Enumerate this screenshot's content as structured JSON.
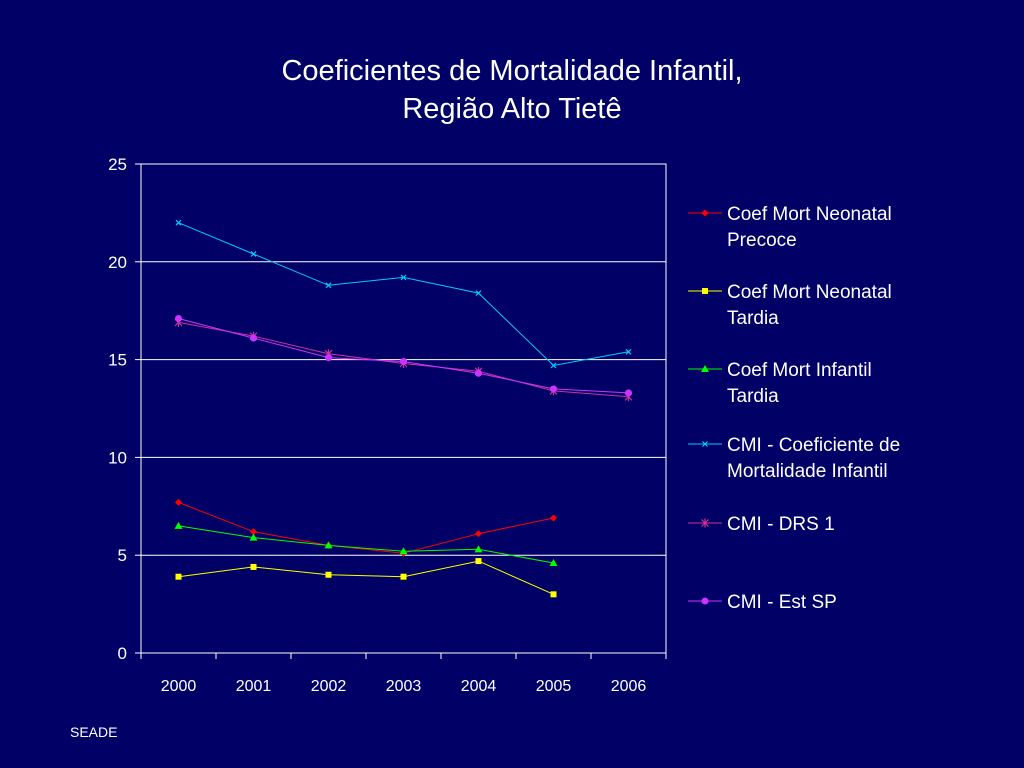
{
  "source": "SEADE",
  "chart_data": {
    "type": "line",
    "title_lines": [
      "Coeficientes de Mortalidade Infantil,",
      "Região Alto Tietê"
    ],
    "categories": [
      "2000",
      "2001",
      "2002",
      "2003",
      "2004",
      "2005",
      "2006"
    ],
    "ylim": [
      0,
      25
    ],
    "yticks": [
      0,
      5,
      10,
      15,
      20,
      25
    ],
    "grid": true,
    "legend_position": "right",
    "series": [
      {
        "name": "Coef Mort Neonatal Precoce",
        "name_lines": [
          "Coef Mort Neonatal",
          "Precoce"
        ],
        "color": "#ff0000",
        "marker": "diamond",
        "values": [
          7.7,
          6.2,
          5.5,
          5.1,
          6.1,
          6.9,
          null
        ]
      },
      {
        "name": "Coef Mort Neonatal Tardia",
        "name_lines": [
          "Coef Mort Neonatal",
          "Tardia"
        ],
        "color": "#ffff00",
        "marker": "square",
        "values": [
          3.9,
          4.4,
          4.0,
          3.9,
          4.7,
          3.0,
          null
        ]
      },
      {
        "name": "Coef Mort Infantil Tardia",
        "name_lines": [
          "Coef Mort Infantil",
          "Tardia"
        ],
        "color": "#00ff00",
        "marker": "triangle",
        "values": [
          6.5,
          5.9,
          5.5,
          5.2,
          5.3,
          4.6,
          null
        ]
      },
      {
        "name": "CMI - Coeficiente de Mortalidade Infantil",
        "name_lines": [
          "CMI - Coeficiente de",
          "Mortalidade Infantil"
        ],
        "color": "#00ccff",
        "marker": "x",
        "values": [
          22.0,
          20.4,
          18.8,
          19.2,
          18.4,
          14.7,
          15.4
        ]
      },
      {
        "name": "CMI - DRS 1",
        "name_lines": [
          "CMI - DRS 1"
        ],
        "color": "#cc3399",
        "marker": "star",
        "values": [
          16.9,
          16.2,
          15.3,
          14.8,
          14.4,
          13.4,
          13.1
        ]
      },
      {
        "name": "CMI - Est SP",
        "name_lines": [
          "CMI - Est SP"
        ],
        "color": "#cc33ff",
        "marker": "circle",
        "values": [
          17.1,
          16.1,
          15.1,
          14.9,
          14.3,
          13.5,
          13.3
        ]
      }
    ]
  }
}
